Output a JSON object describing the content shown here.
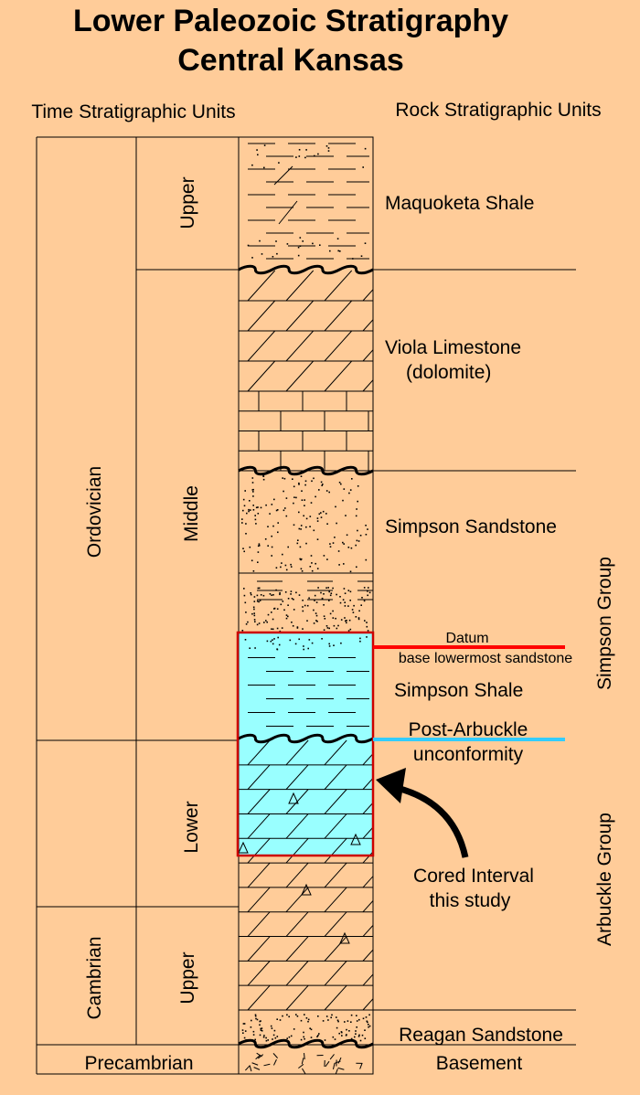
{
  "title_line1": "Lower Paleozoic Stratigraphy",
  "title_line2": "Central Kansas",
  "headers": {
    "time": "Time Stratigraphic Units",
    "rock": "Rock Stratigraphic Units"
  },
  "systems": {
    "ordovician": "Ordovician",
    "cambrian": "Cambrian",
    "precambrian": "Precambrian"
  },
  "series": {
    "upper_ordovician": "Upper",
    "middle_ordovician": "Middle",
    "lower_ordovician": "Lower",
    "upper_cambrian": "Upper"
  },
  "formations": {
    "maquoketa": "Maquoketa Shale",
    "viola_1": "Viola Limestone",
    "viola_2": "(dolomite)",
    "simpson_sandstone": "Simpson Sandstone",
    "simpson_shale": "Simpson Shale",
    "reagan": "Reagan Sandstone",
    "basement": "Basement"
  },
  "groups": {
    "simpson": "Simpson Group",
    "arbuckle": "Arbuckle Group"
  },
  "annotations": {
    "datum_1": "Datum",
    "datum_2": "base lowermost sandstone",
    "unconf_1": "Post-Arbuckle",
    "unconf_2": "unconformity",
    "cored_1": "Cored Interval",
    "cored_2": "this study"
  },
  "colors": {
    "background": "#FFCC99",
    "cored_fill": "#99FFFF",
    "cored_border": "#CC0000",
    "datum_line": "#FF0000",
    "unconformity_line": "#33CCFF"
  }
}
